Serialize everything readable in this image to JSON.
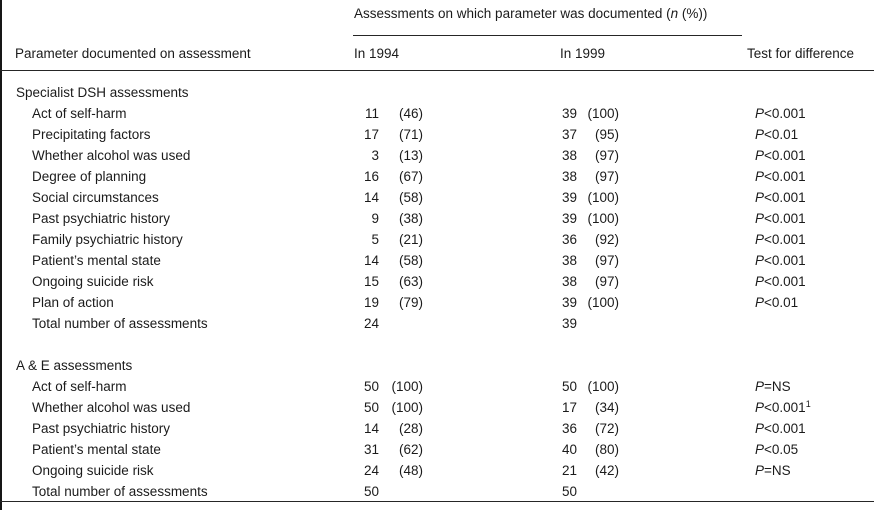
{
  "colors": {
    "text": "#1b1b1b",
    "rule": "#262626",
    "background": "#ffffff"
  },
  "header": {
    "group_prefix": "Assessments on which parameter was documented (",
    "group_italic": "n",
    "group_suffix": " (%))",
    "col_parameter": "Parameter documented on assessment",
    "col_1994": "In 1994",
    "col_1999": "In 1999",
    "col_test": "Test for difference"
  },
  "sections": [
    {
      "title": "Specialist DSH assessments",
      "rows": [
        {
          "label": "Act of self-harm",
          "n_1994": "11",
          "pct_1994": "(46)",
          "n_1999": "39",
          "pct_1999": "(100)",
          "test": "P<0.001",
          "test_sup": ""
        },
        {
          "label": "Precipitating factors",
          "n_1994": "17",
          "pct_1994": "(71)",
          "n_1999": "37",
          "pct_1999": "(95)",
          "test": "P<0.01",
          "test_sup": ""
        },
        {
          "label": "Whether alcohol was used",
          "n_1994": "3",
          "pct_1994": "(13)",
          "n_1999": "38",
          "pct_1999": "(97)",
          "test": "P<0.001",
          "test_sup": ""
        },
        {
          "label": "Degree of planning",
          "n_1994": "16",
          "pct_1994": "(67)",
          "n_1999": "38",
          "pct_1999": "(97)",
          "test": "P<0.001",
          "test_sup": ""
        },
        {
          "label": "Social circumstances",
          "n_1994": "14",
          "pct_1994": "(58)",
          "n_1999": "39",
          "pct_1999": "(100)",
          "test": "P<0.001",
          "test_sup": ""
        },
        {
          "label": "Past psychiatric history",
          "n_1994": "9",
          "pct_1994": "(38)",
          "n_1999": "39",
          "pct_1999": "(100)",
          "test": "P<0.001",
          "test_sup": ""
        },
        {
          "label": "Family psychiatric history",
          "n_1994": "5",
          "pct_1994": "(21)",
          "n_1999": "36",
          "pct_1999": "(92)",
          "test": "P<0.001",
          "test_sup": ""
        },
        {
          "label": "Patient’s mental state",
          "n_1994": "14",
          "pct_1994": "(58)",
          "n_1999": "38",
          "pct_1999": "(97)",
          "test": "P<0.001",
          "test_sup": ""
        },
        {
          "label": "Ongoing suicide risk",
          "n_1994": "15",
          "pct_1994": "(63)",
          "n_1999": "38",
          "pct_1999": "(97)",
          "test": "P<0.001",
          "test_sup": ""
        },
        {
          "label": "Plan of action",
          "n_1994": "19",
          "pct_1994": "(79)",
          "n_1999": "39",
          "pct_1999": "(100)",
          "test": "P<0.01",
          "test_sup": ""
        },
        {
          "label": "Total number of assessments",
          "n_1994": "24",
          "pct_1994": "",
          "n_1999": "39",
          "pct_1999": "",
          "test": "",
          "test_sup": ""
        }
      ]
    },
    {
      "title": "A & E assessments",
      "rows": [
        {
          "label": "Act of self-harm",
          "n_1994": "50",
          "pct_1994": "(100)",
          "n_1999": "50",
          "pct_1999": "(100)",
          "test": "P=NS",
          "test_sup": ""
        },
        {
          "label": "Whether alcohol was used",
          "n_1994": "50",
          "pct_1994": "(100)",
          "n_1999": "17",
          "pct_1999": "(34)",
          "test": "P<0.001",
          "test_sup": "1"
        },
        {
          "label": "Past psychiatric history",
          "n_1994": "14",
          "pct_1994": "(28)",
          "n_1999": "36",
          "pct_1999": "(72)",
          "test": "P<0.001",
          "test_sup": ""
        },
        {
          "label": "Patient’s mental state",
          "n_1994": "31",
          "pct_1994": "(62)",
          "n_1999": "40",
          "pct_1999": "(80)",
          "test": "P<0.05",
          "test_sup": ""
        },
        {
          "label": "Ongoing suicide risk",
          "n_1994": "24",
          "pct_1994": "(48)",
          "n_1999": "21",
          "pct_1999": "(42)",
          "test": "P=NS",
          "test_sup": ""
        },
        {
          "label": "Total number of assessments",
          "n_1994": "50",
          "pct_1994": "",
          "n_1999": "50",
          "pct_1999": "",
          "test": "",
          "test_sup": ""
        }
      ]
    }
  ]
}
